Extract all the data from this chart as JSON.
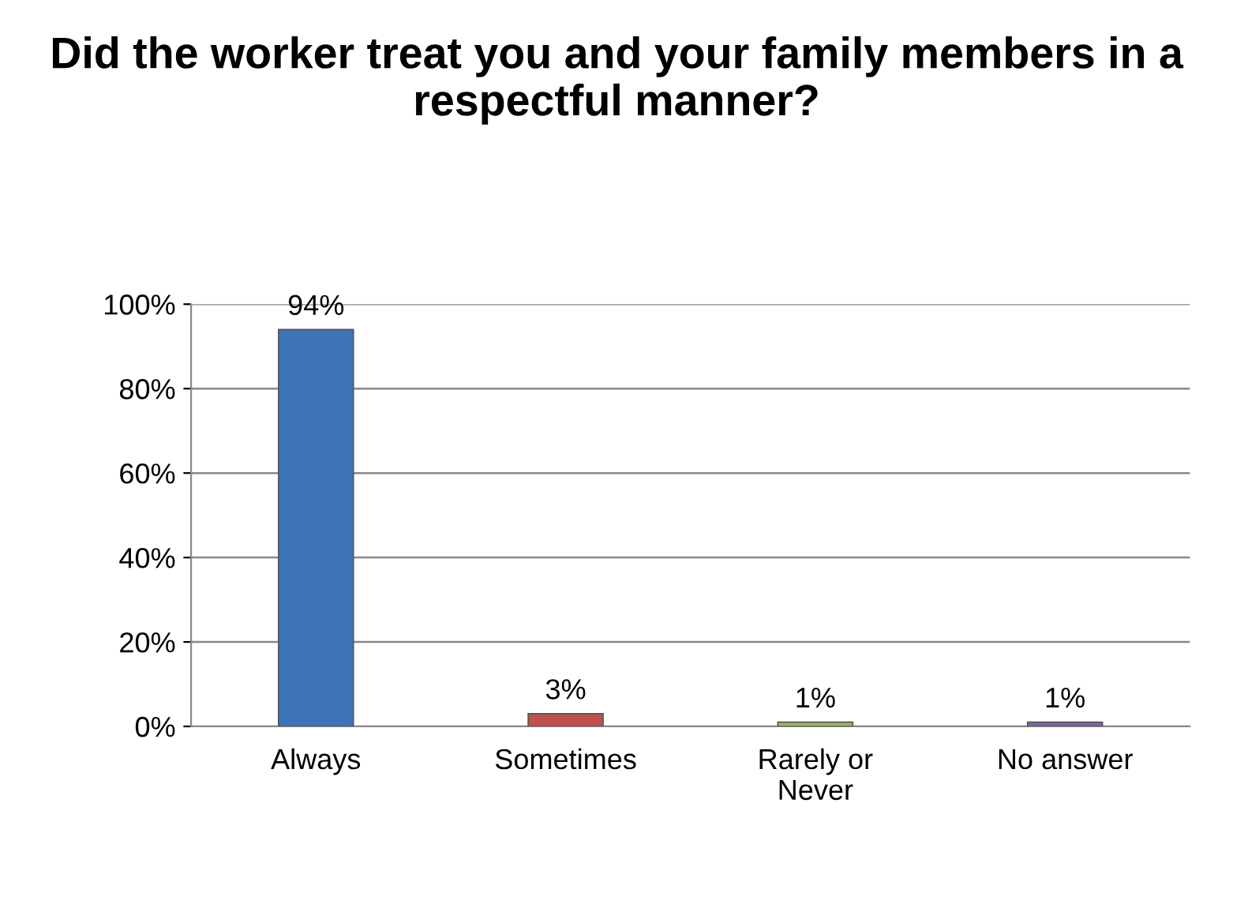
{
  "chart_data": {
    "type": "bar",
    "title": "Did the worker treat you and your family members in a respectful manner?",
    "categories": [
      "Always",
      "Sometimes",
      "Rarely or\nNever",
      "No answer"
    ],
    "values": [
      94,
      3,
      1,
      1
    ],
    "colors": [
      "#3f73b8",
      "#c0504d",
      "#9bbb59",
      "#8064a2"
    ],
    "value_labels": [
      "94%",
      "3%",
      "1%",
      "1%"
    ],
    "ylim": [
      0,
      100
    ],
    "yticks": [
      {
        "value": 0,
        "label": "0%"
      },
      {
        "value": 20,
        "label": "20%"
      },
      {
        "value": 40,
        "label": "40%"
      },
      {
        "value": 60,
        "label": "60%"
      },
      {
        "value": 80,
        "label": "80%"
      },
      {
        "value": 100,
        "label": "100%"
      }
    ],
    "grid": "y",
    "legend": false
  }
}
